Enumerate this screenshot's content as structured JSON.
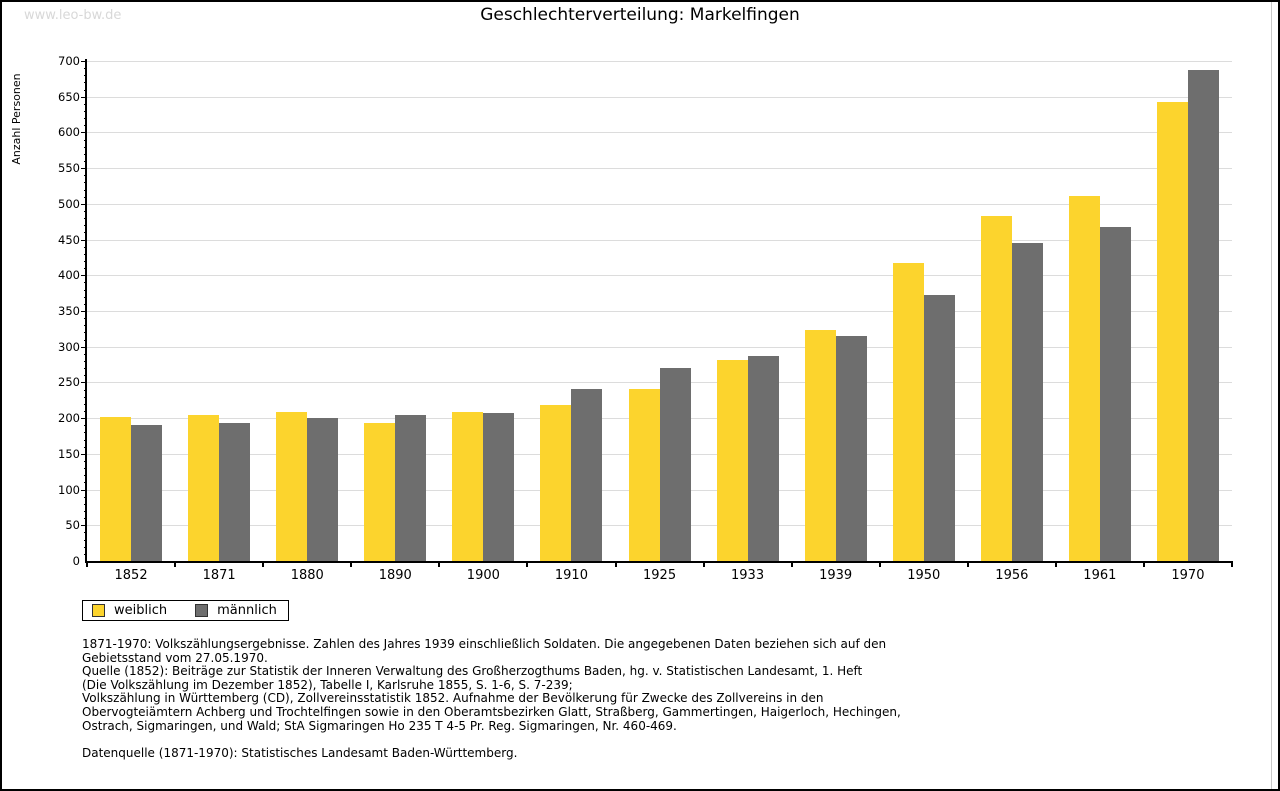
{
  "watermark": "www.leo-bw.de",
  "title": "Geschlechterverteilung: Markelfingen",
  "chart_data": {
    "type": "bar",
    "title": "Geschlechterverteilung: Markelfingen",
    "xlabel": "",
    "ylabel": "Anzahl Personen",
    "ylim": [
      0,
      700
    ],
    "ytick_step": 50,
    "yminor_step": 10,
    "grid": true,
    "legend_position": "bottom-left",
    "categories": [
      "1852",
      "1871",
      "1880",
      "1890",
      "1900",
      "1910",
      "1925",
      "1933",
      "1939",
      "1950",
      "1956",
      "1961",
      "1970"
    ],
    "series": [
      {
        "name": "weiblich",
        "color": "#fcd42d",
        "values": [
          202,
          205,
          208,
          193,
          209,
          218,
          241,
          281,
          323,
          417,
          483,
          511,
          643
        ]
      },
      {
        "name": "männlich",
        "color": "#6e6e6e",
        "values": [
          190,
          193,
          200,
          205,
          207,
          241,
          270,
          287,
          315,
          373,
          445,
          467,
          687
        ]
      }
    ]
  },
  "colors": {
    "grid": "#dcdcdc",
    "axis": "#000000",
    "watermark": "#d8d8d8"
  },
  "footnotes": {
    "lines": [
      "1871-1970: Volkszählungsergebnisse. Zahlen des Jahres 1939 einschließlich Soldaten. Die angegebenen Daten beziehen sich auf den",
      "Gebietsstand vom 27.05.1970.",
      "Quelle (1852): Beiträge zur Statistik der Inneren Verwaltung des Großherzogthums Baden, hg. v. Statistischen Landesamt, 1. Heft",
      "(Die Volkszählung im Dezember 1852), Tabelle I, Karlsruhe 1855, S. 1-6, S. 7-239;",
      "Volkszählung in Württemberg (CD), Zollvereinsstatistik 1852. Aufnahme der Bevölkerung für Zwecke des Zollvereins in den",
      "Obervogteiämtern Achberg und Trochtelfingen sowie in den Oberamtsbezirken Glatt, Straßberg, Gammertingen, Haigerloch, Hechingen,",
      "Ostrach, Sigmaringen, und Wald; StA Sigmaringen Ho 235 T 4-5 Pr. Reg. Sigmaringen, Nr. 460-469.",
      "Datenquelle (1871-1970): Statistisches Landesamt Baden-Württemberg."
    ]
  }
}
